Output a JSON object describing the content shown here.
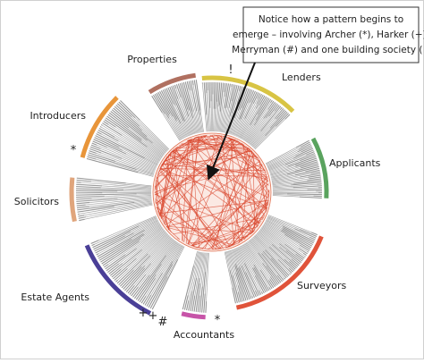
{
  "annotation": {
    "lines": [
      "Notice how a pattern begins to",
      "emerge – involving Archer (*), Harker (+),",
      "Merryman (#) and one building society (!)"
    ]
  },
  "groups": [
    {
      "label": "Lenders",
      "color": "#d8c444"
    },
    {
      "label": "Applicants",
      "color": "#5aa35e"
    },
    {
      "label": "Surveyors",
      "color": "#e0533a"
    },
    {
      "label": "Accountants",
      "color": "#c754a8"
    },
    {
      "label": "Estate Agents",
      "color": "#4a3f97"
    },
    {
      "label": "Solicitors",
      "color": "#e0a57c"
    },
    {
      "label": "Introducers",
      "color": "#e8953a"
    },
    {
      "label": "Properties",
      "color": "#b07060"
    }
  ],
  "markers": [
    "!",
    "*",
    "+",
    "+",
    "#",
    "*"
  ]
}
